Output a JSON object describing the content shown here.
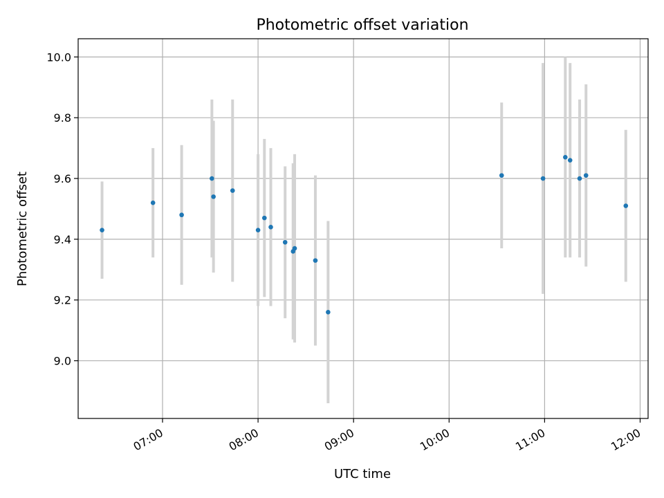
{
  "chart_data": {
    "type": "scatter",
    "title": "Photometric offset variation",
    "xlabel": "UTC time",
    "ylabel": "Photometric offset",
    "x_ticks": [
      "07:00",
      "08:00",
      "09:00",
      "10:00",
      "11:00",
      "12:00"
    ],
    "xlim": [
      "06:07",
      "12:05"
    ],
    "y_ticks": [
      "9.0",
      "9.2",
      "9.4",
      "9.6",
      "9.8",
      "10.0"
    ],
    "ylim": [
      8.81,
      10.06
    ],
    "grid": true,
    "colors": {
      "point": "#1f77b4",
      "errorbar": "#d3d3d3",
      "grid": "#b0b0b0"
    },
    "points": [
      {
        "time": "06:22",
        "y": 9.43,
        "yerr": 0.16
      },
      {
        "time": "06:54",
        "y": 9.52,
        "yerr": 0.18
      },
      {
        "time": "07:12",
        "y": 9.48,
        "yerr": 0.23
      },
      {
        "time": "07:31",
        "y": 9.6,
        "yerr": 0.26
      },
      {
        "time": "07:32",
        "y": 9.54,
        "yerr": 0.25
      },
      {
        "time": "07:44",
        "y": 9.56,
        "yerr": 0.3
      },
      {
        "time": "08:00",
        "y": 9.43,
        "yerr": 0.25
      },
      {
        "time": "08:04",
        "y": 9.47,
        "yerr": 0.26
      },
      {
        "time": "08:08",
        "y": 9.44,
        "yerr": 0.26
      },
      {
        "time": "08:17",
        "y": 9.39,
        "yerr": 0.25
      },
      {
        "time": "08:22",
        "y": 9.36,
        "yerr": 0.29
      },
      {
        "time": "08:23",
        "y": 9.37,
        "yerr": 0.31
      },
      {
        "time": "08:36",
        "y": 9.33,
        "yerr": 0.28
      },
      {
        "time": "08:44",
        "y": 9.16,
        "yerr": 0.3
      },
      {
        "time": "10:33",
        "y": 9.61,
        "yerr": 0.24
      },
      {
        "time": "10:59",
        "y": 9.6,
        "yerr": 0.38
      },
      {
        "time": "11:13",
        "y": 9.67,
        "yerr": 0.33
      },
      {
        "time": "11:16",
        "y": 9.66,
        "yerr": 0.32
      },
      {
        "time": "11:22",
        "y": 9.6,
        "yerr": 0.26
      },
      {
        "time": "11:26",
        "y": 9.61,
        "yerr": 0.3
      },
      {
        "time": "11:51",
        "y": 9.51,
        "yerr": 0.25
      }
    ]
  }
}
